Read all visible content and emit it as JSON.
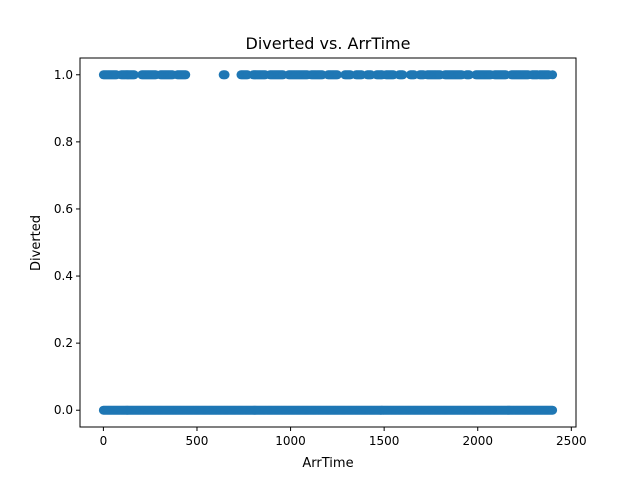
{
  "chart_data": {
    "type": "scatter",
    "title": "Diverted vs. ArrTime",
    "xlabel": "ArrTime",
    "ylabel": "Diverted",
    "xlim": [
      -125,
      2525
    ],
    "ylim": [
      -0.05,
      1.05
    ],
    "xticks": [
      0,
      500,
      1000,
      1500,
      2000,
      2500
    ],
    "yticks": [
      0.0,
      0.2,
      0.4,
      0.6,
      0.8,
      1.0
    ],
    "xtick_labels": [
      "0",
      "500",
      "1000",
      "1500",
      "2000",
      "2500"
    ],
    "ytick_labels": [
      "0.0",
      "0.2",
      "0.4",
      "0.6",
      "0.8",
      "1.0"
    ],
    "grid": false,
    "marker_color": "#1f77b4",
    "series": [
      {
        "x_segments": [
          [
            0,
            2400
          ]
        ],
        "x_step": 5,
        "y": 0
      },
      {
        "x_segments": [
          [
            0,
            70
          ],
          [
            95,
            165
          ],
          [
            205,
            280
          ],
          [
            305,
            370
          ],
          [
            395,
            440
          ],
          [
            640,
            650
          ],
          [
            735,
            770
          ],
          [
            800,
            865
          ],
          [
            890,
            960
          ],
          [
            990,
            1090
          ],
          [
            1110,
            1170
          ],
          [
            1200,
            1250
          ],
          [
            1290,
            1320
          ],
          [
            1350,
            1380
          ],
          [
            1410,
            1430
          ],
          [
            1460,
            1490
          ],
          [
            1510,
            1550
          ],
          [
            1580,
            1600
          ],
          [
            1640,
            1660
          ],
          [
            1690,
            1710
          ],
          [
            1730,
            1800
          ],
          [
            1825,
            1915
          ],
          [
            1940,
            1955
          ],
          [
            1990,
            2070
          ],
          [
            2090,
            2150
          ],
          [
            2180,
            2270
          ],
          [
            2290,
            2320
          ],
          [
            2330,
            2380
          ],
          [
            2400,
            2400
          ]
        ],
        "x_step": 5,
        "y": 1
      }
    ]
  }
}
